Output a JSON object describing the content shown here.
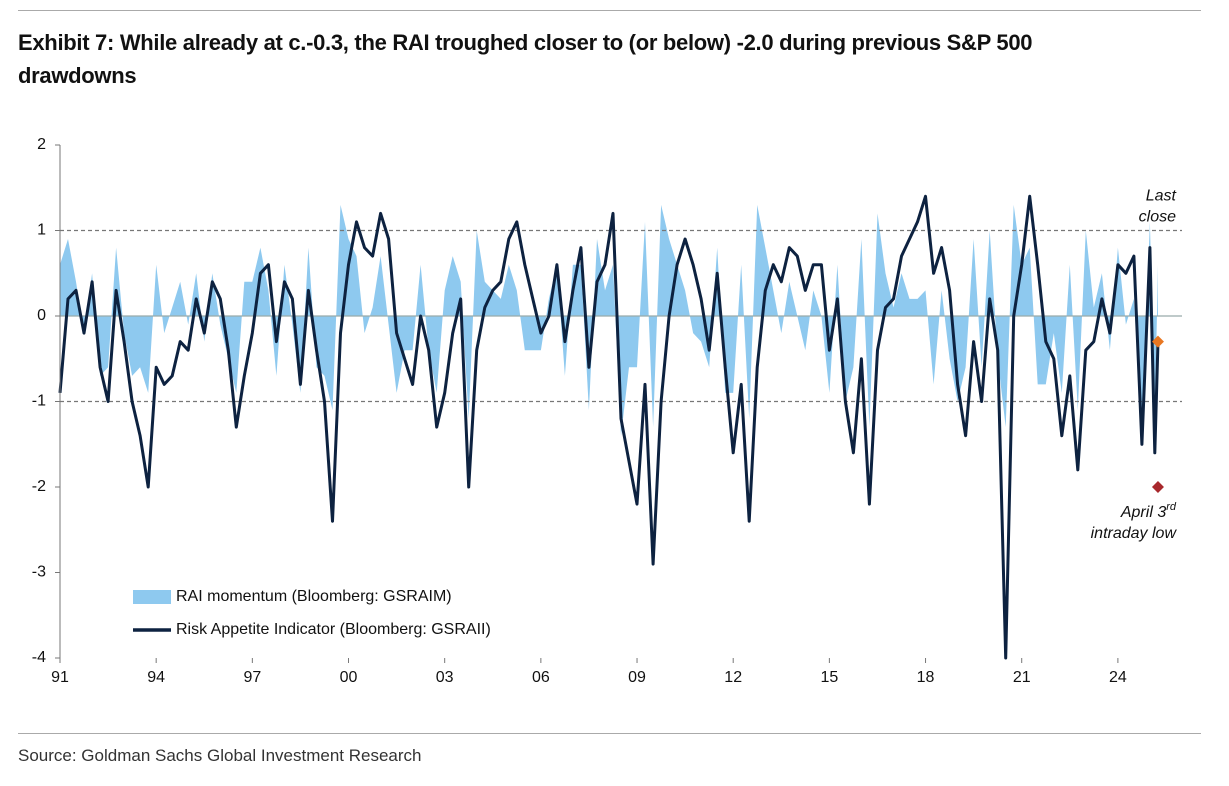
{
  "chart_data": {
    "type": "line",
    "title": "Exhibit 7: While already at c.-0.3, the RAI troughed closer to (or below) -2.0 during previous S&P 500 drawdowns",
    "source": "Source: Goldman Sachs Global Investment Research",
    "x": [
      1991,
      1991.25,
      1991.5,
      1991.75,
      1992,
      1992.25,
      1992.5,
      1992.75,
      1993,
      1993.25,
      1993.5,
      1993.75,
      1994,
      1994.25,
      1994.5,
      1994.75,
      1995,
      1995.25,
      1995.5,
      1995.75,
      1996,
      1996.25,
      1996.5,
      1996.75,
      1997,
      1997.25,
      1997.5,
      1997.75,
      1998,
      1998.25,
      1998.5,
      1998.75,
      1999,
      1999.25,
      1999.5,
      1999.75,
      2000,
      2000.25,
      2000.5,
      2000.75,
      2001,
      2001.25,
      2001.5,
      2001.75,
      2002,
      2002.25,
      2002.5,
      2002.75,
      2003,
      2003.25,
      2003.5,
      2003.75,
      2004,
      2004.25,
      2004.5,
      2004.75,
      2005,
      2005.25,
      2005.5,
      2005.75,
      2006,
      2006.25,
      2006.5,
      2006.75,
      2007,
      2007.25,
      2007.5,
      2007.75,
      2008,
      2008.25,
      2008.5,
      2008.75,
      2009,
      2009.25,
      2009.5,
      2009.75,
      2010,
      2010.25,
      2010.5,
      2010.75,
      2011,
      2011.25,
      2011.5,
      2011.75,
      2012,
      2012.25,
      2012.5,
      2012.75,
      2013,
      2013.25,
      2013.5,
      2013.75,
      2014,
      2014.25,
      2014.5,
      2014.75,
      2015,
      2015.25,
      2015.5,
      2015.75,
      2016,
      2016.25,
      2016.5,
      2016.75,
      2017,
      2017.25,
      2017.5,
      2017.75,
      2018,
      2018.25,
      2018.5,
      2018.75,
      2019,
      2019.25,
      2019.5,
      2019.75,
      2020,
      2020.25,
      2020.5,
      2020.75,
      2021,
      2021.25,
      2021.5,
      2021.75,
      2022,
      2022.25,
      2022.5,
      2022.75,
      2023,
      2023.25,
      2023.5,
      2023.75,
      2024,
      2024.25,
      2024.5,
      2024.75,
      2025,
      2025.15,
      2025.25
    ],
    "series": [
      {
        "name": "RAI momentum (Bloomberg: GSRAIM)",
        "color": "#8ec9ef",
        "style": "area",
        "values": [
          0.6,
          0.9,
          0.4,
          -0.2,
          0.5,
          -0.7,
          -0.6,
          0.8,
          -0.2,
          -0.7,
          -0.6,
          -0.9,
          0.6,
          -0.2,
          0.1,
          0.4,
          -0.1,
          0.5,
          -0.3,
          0.5,
          -0.1,
          -0.5,
          -0.9,
          0.4,
          0.4,
          0.8,
          0.3,
          -0.7,
          0.6,
          -0.1,
          -0.9,
          0.8,
          -0.6,
          -0.7,
          -1.1,
          1.3,
          0.9,
          0.7,
          -0.2,
          0.1,
          0.7,
          -0.1,
          -0.9,
          -0.4,
          -0.4,
          0.6,
          -0.4,
          -0.9,
          0.3,
          0.7,
          0.4,
          -1.2,
          1.0,
          0.4,
          0.3,
          0.2,
          0.6,
          0.3,
          -0.4,
          -0.4,
          -0.4,
          0.2,
          0.6,
          -0.7,
          0.6,
          0.6,
          -1.1,
          0.9,
          0.3,
          0.6,
          -1.4,
          -0.6,
          -0.6,
          1.1,
          -1.3,
          1.3,
          0.9,
          0.6,
          0.3,
          -0.2,
          -0.3,
          -0.6,
          0.8,
          -0.9,
          -0.9,
          0.6,
          -1.2,
          1.3,
          0.8,
          0.3,
          -0.2,
          0.4,
          0.0,
          -0.4,
          0.3,
          0.0,
          -0.9,
          0.6,
          -1.0,
          -0.6,
          0.9,
          -1.3,
          1.2,
          0.5,
          0.1,
          0.5,
          0.2,
          0.2,
          0.3,
          -0.8,
          0.3,
          -0.5,
          -1.0,
          -0.6,
          0.9,
          -0.6,
          1.0,
          -0.5,
          -1.3,
          1.3,
          0.6,
          0.8,
          -0.8,
          -0.8,
          -0.2,
          -0.9,
          0.6,
          -1.1,
          1.0,
          0.1,
          0.5,
          -0.4,
          0.8,
          -0.1,
          0.2,
          -1.3,
          1.1,
          -1.2,
          0.6
        ]
      },
      {
        "name": "Risk Appetite Indicator (Bloomberg: GSRAII)",
        "color": "#0d2240",
        "style": "line",
        "values": [
          -0.9,
          0.2,
          0.3,
          -0.2,
          0.4,
          -0.6,
          -1.0,
          0.3,
          -0.3,
          -1.0,
          -1.4,
          -2.0,
          -0.6,
          -0.8,
          -0.7,
          -0.3,
          -0.4,
          0.2,
          -0.2,
          0.4,
          0.2,
          -0.4,
          -1.3,
          -0.7,
          -0.2,
          0.5,
          0.6,
          -0.3,
          0.4,
          0.2,
          -0.8,
          0.3,
          -0.4,
          -1.0,
          -2.4,
          -0.2,
          0.6,
          1.1,
          0.8,
          0.7,
          1.2,
          0.9,
          -0.2,
          -0.5,
          -0.8,
          0.0,
          -0.4,
          -1.3,
          -0.9,
          -0.2,
          0.2,
          -2.0,
          -0.4,
          0.1,
          0.3,
          0.4,
          0.9,
          1.1,
          0.6,
          0.2,
          -0.2,
          0.0,
          0.6,
          -0.3,
          0.3,
          0.8,
          -0.6,
          0.4,
          0.6,
          1.2,
          -1.2,
          -1.7,
          -2.2,
          -0.8,
          -2.9,
          -1.0,
          0.0,
          0.6,
          0.9,
          0.6,
          0.2,
          -0.4,
          0.5,
          -0.6,
          -1.6,
          -0.8,
          -2.4,
          -0.6,
          0.3,
          0.6,
          0.4,
          0.8,
          0.7,
          0.3,
          0.6,
          0.6,
          -0.4,
          0.2,
          -1.0,
          -1.6,
          -0.5,
          -2.2,
          -0.4,
          0.1,
          0.2,
          0.7,
          0.9,
          1.1,
          1.4,
          0.5,
          0.8,
          0.3,
          -0.8,
          -1.4,
          -0.3,
          -1.0,
          0.2,
          -0.4,
          -4.0,
          0.0,
          0.6,
          1.4,
          0.6,
          -0.3,
          -0.5,
          -1.4,
          -0.7,
          -1.8,
          -0.4,
          -0.3,
          0.2,
          -0.2,
          0.6,
          0.5,
          0.7,
          -1.5,
          0.8,
          -1.6,
          -0.3
        ]
      }
    ],
    "annotations": [
      {
        "lines": [
          "Last",
          "close"
        ],
        "x": 2025.25,
        "y": -0.3,
        "color": "#e87722"
      },
      {
        "lines": [
          "April 3",
          "intraday low"
        ],
        "superscript": "rd",
        "x": 2025.25,
        "y": -2.0,
        "color": "#a8282c"
      }
    ],
    "xlim": [
      1991,
      2026
    ],
    "xticks": [
      {
        "value": 1991,
        "label": "91"
      },
      {
        "value": 1994,
        "label": "94"
      },
      {
        "value": 1997,
        "label": "97"
      },
      {
        "value": 2000,
        "label": "00"
      },
      {
        "value": 2003,
        "label": "03"
      },
      {
        "value": 2006,
        "label": "06"
      },
      {
        "value": 2009,
        "label": "09"
      },
      {
        "value": 2012,
        "label": "12"
      },
      {
        "value": 2015,
        "label": "15"
      },
      {
        "value": 2018,
        "label": "18"
      },
      {
        "value": 2021,
        "label": "21"
      },
      {
        "value": 2024,
        "label": "24"
      }
    ],
    "ylim": [
      -4,
      2
    ],
    "yticks": [
      -4,
      -3,
      -2,
      -1,
      0,
      1,
      2
    ],
    "reference_lines": [
      {
        "value": -1,
        "style": "dashed"
      },
      {
        "value": 0,
        "style": "solid"
      },
      {
        "value": 1,
        "style": "dashed"
      }
    ]
  }
}
